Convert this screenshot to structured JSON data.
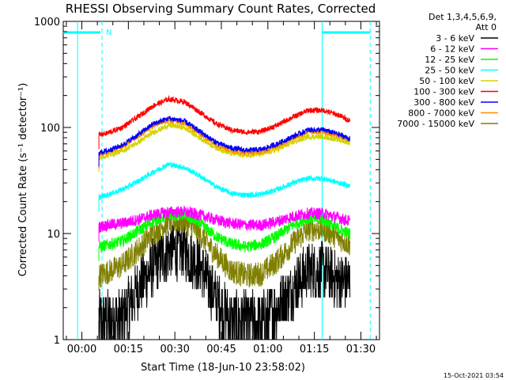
{
  "chart_data": {
    "type": "line",
    "title": "RHESSI Observing Summary Count Rates, Corrected",
    "xlabel": "Start Time (18-Jun-10 23:58:02)",
    "ylabel": "Corrected Count Rate (s⁻¹ detector⁻¹)",
    "yscale": "log",
    "ylim": [
      1,
      1000
    ],
    "xlim_minutes": [
      -4,
      98
    ],
    "x_tick_labels": [
      "00:00",
      "00:15",
      "00:30",
      "00:45",
      "01:00",
      "01:15",
      "01:30"
    ],
    "x_tick_minutes": [
      2,
      17,
      32,
      47,
      62,
      77,
      92
    ],
    "y_tick_labels": [
      "1",
      "10",
      "100",
      "1000"
    ],
    "y_tick_values": [
      1,
      10,
      100,
      1000
    ],
    "legend_header": [
      "Det 1,3,4,5,6,9,",
      "Att 0"
    ],
    "timestamp": "15-Oct-2021 03:54",
    "night_marker_label": "N",
    "day_start_minute": 7.5,
    "day_end_minute": 88.5,
    "eclipse_markers_minutes": [
      -4,
      8,
      79.5,
      95
    ],
    "eclipse_dashed_minutes": [
      8.5,
      95
    ],
    "series": [
      {
        "name": "3 - 6 keV",
        "color": "#000000",
        "x": [
          7.5,
          10,
          15,
          20,
          25,
          30,
          35,
          40,
          45,
          50,
          55,
          60,
          65,
          70,
          75,
          80,
          85,
          88.5
        ],
        "y": [
          1.5,
          1.5,
          1.6,
          3,
          5,
          7,
          7,
          5,
          2.5,
          1.5,
          1.5,
          1.5,
          2,
          3,
          4.5,
          4.5,
          3.5,
          3.5
        ]
      },
      {
        "name": "6 - 12 keV",
        "color": "#ff00ff",
        "x": [
          7.5,
          10,
          15,
          20,
          25,
          30,
          35,
          40,
          45,
          50,
          55,
          60,
          65,
          70,
          75,
          80,
          85,
          88.5
        ],
        "y": [
          11.5,
          12,
          12.5,
          13.5,
          15,
          16,
          16,
          15,
          13.5,
          12.5,
          12,
          12,
          13,
          14.5,
          15.5,
          15.5,
          14,
          13
        ]
      },
      {
        "name": "12 - 25 keV",
        "color": "#00ff00",
        "x": [
          7.5,
          10,
          15,
          20,
          25,
          30,
          35,
          40,
          45,
          50,
          55,
          60,
          65,
          70,
          75,
          80,
          85,
          88.5
        ],
        "y": [
          7.5,
          7.8,
          8.5,
          10.5,
          13,
          15,
          15,
          12.5,
          9.5,
          8,
          7.5,
          8,
          9.5,
          12,
          14,
          13.5,
          11,
          10
        ]
      },
      {
        "name": "25 - 50 keV",
        "color": "#00ffff",
        "x": [
          7.5,
          10,
          15,
          20,
          25,
          30,
          35,
          40,
          45,
          50,
          55,
          60,
          65,
          70,
          75,
          80,
          85,
          88.5
        ],
        "y": [
          22,
          23,
          26,
          31,
          38,
          45,
          42,
          35,
          28,
          24,
          23,
          23.5,
          26,
          30,
          33,
          33,
          30,
          28
        ]
      },
      {
        "name": "50 - 100 keV",
        "color": "#d4d400",
        "x": [
          7.5,
          10,
          15,
          20,
          25,
          30,
          35,
          40,
          45,
          50,
          55,
          60,
          65,
          70,
          75,
          80,
          85,
          88.5
        ],
        "y": [
          52,
          54,
          60,
          72,
          90,
          105,
          100,
          80,
          65,
          57,
          55,
          56,
          62,
          72,
          82,
          82,
          76,
          72
        ]
      },
      {
        "name": "100 - 300 keV",
        "color": "#ff0000",
        "x": [
          7.5,
          10,
          15,
          20,
          25,
          30,
          35,
          40,
          45,
          50,
          55,
          60,
          65,
          70,
          75,
          80,
          85,
          88.5
        ],
        "y": [
          85,
          88,
          100,
          125,
          160,
          185,
          175,
          140,
          110,
          95,
          90,
          92,
          105,
          125,
          145,
          145,
          130,
          115
        ]
      },
      {
        "name": "300 - 800 keV",
        "color": "#0000ff",
        "x": [
          7.5,
          10,
          15,
          20,
          25,
          30,
          35,
          40,
          45,
          50,
          55,
          60,
          65,
          70,
          75,
          80,
          85,
          88.5
        ],
        "y": [
          58,
          60,
          68,
          85,
          108,
          122,
          115,
          92,
          73,
          64,
          61,
          62,
          70,
          82,
          95,
          95,
          86,
          78
        ]
      },
      {
        "name": "800 - 7000 keV",
        "color": "#ff8c00",
        "x": [
          7.5,
          10,
          15,
          20,
          25,
          30,
          35,
          40,
          45,
          50,
          55,
          60,
          65,
          70,
          75,
          80,
          85,
          88.5
        ],
        "y": [
          56,
          58,
          66,
          82,
          104,
          117,
          110,
          88,
          70,
          61,
          58,
          59,
          67,
          79,
          91,
          91,
          83,
          75
        ]
      },
      {
        "name": "7000 - 15000 keV",
        "color": "#808000",
        "x": [
          7.5,
          10,
          15,
          20,
          25,
          30,
          35,
          40,
          45,
          50,
          55,
          60,
          65,
          70,
          75,
          80,
          85,
          88.5
        ],
        "y": [
          4,
          4.3,
          5,
          7,
          10,
          13,
          13,
          10,
          6.5,
          4.5,
          4,
          4.2,
          5.5,
          8,
          11,
          11,
          9,
          8
        ]
      }
    ]
  }
}
